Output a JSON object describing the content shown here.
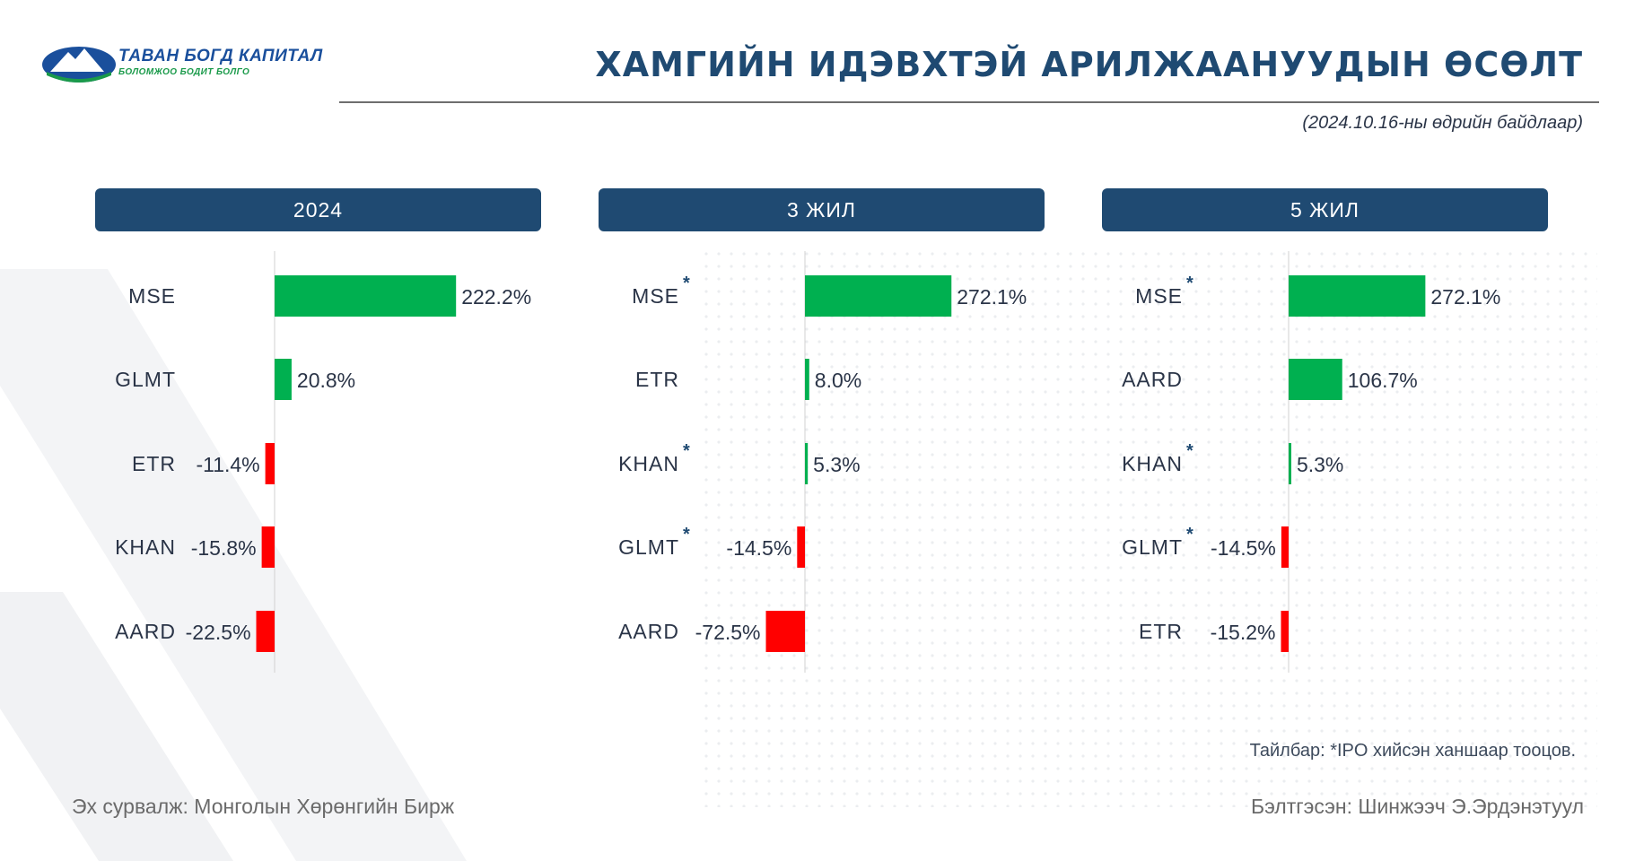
{
  "logo": {
    "name": "ТАВАН БОГД КАПИТАЛ",
    "slogan": "БОЛОМЖОО БОДИТ БОЛГО",
    "colors": {
      "mountain": "#1a4f9c",
      "snow": "#ffffff",
      "field": "#1a9a4a"
    }
  },
  "header": {
    "title": "ХАМГИЙН ИДЭВХТЭЙ АРИЛЖААНУУДЫН ӨСӨЛТ",
    "date_note": "(2024.10.16-ны өдрийн байдлаар)"
  },
  "colors": {
    "positive": "#00b050",
    "negative": "#ff0000",
    "header_bg": "#1f4a72",
    "label_text": "#2a3447"
  },
  "chart_data": [
    {
      "type": "bar",
      "orientation": "horizontal",
      "title": "2024",
      "categories": [
        "MSE",
        "GLMT",
        "ETR",
        "KHAN",
        "AARD"
      ],
      "values": [
        222.2,
        20.8,
        -11.4,
        -15.8,
        -22.5
      ],
      "value_labels": [
        "222.2%",
        "20.8%",
        "-11.4%",
        "-15.8%",
        "-22.5%"
      ],
      "ipo_marked": [
        false,
        false,
        false,
        false,
        false
      ],
      "unit": "%"
    },
    {
      "type": "bar",
      "orientation": "horizontal",
      "title": "3 ЖИЛ",
      "categories": [
        "MSE",
        "ETR",
        "KHAN",
        "GLMT",
        "AARD"
      ],
      "values": [
        272.1,
        8.0,
        5.3,
        -14.5,
        -72.5
      ],
      "value_labels": [
        "272.1%",
        "8.0%",
        "5.3%",
        "-14.5%",
        "-72.5%"
      ],
      "ipo_marked": [
        true,
        false,
        true,
        true,
        false
      ],
      "unit": "%"
    },
    {
      "type": "bar",
      "orientation": "horizontal",
      "title": "5 ЖИЛ",
      "categories": [
        "MSE",
        "AARD",
        "KHAN",
        "GLMT",
        "ETR"
      ],
      "values": [
        272.1,
        106.7,
        5.3,
        -14.5,
        -15.2
      ],
      "value_labels": [
        "272.1%",
        "106.7%",
        "5.3%",
        "-14.5%",
        "-15.2%"
      ],
      "ipo_marked": [
        true,
        false,
        true,
        true,
        false
      ],
      "unit": "%"
    }
  ],
  "footer": {
    "note": "Тайлбар: *IPO хийсэн ханшаар тооцов.",
    "source": "Эх сурвалж:  Монголын Хөрөнгийн Бирж",
    "prepared_by": "Бэлтгэсэн: Шинжээч Э.Эрдэнэтуул"
  }
}
